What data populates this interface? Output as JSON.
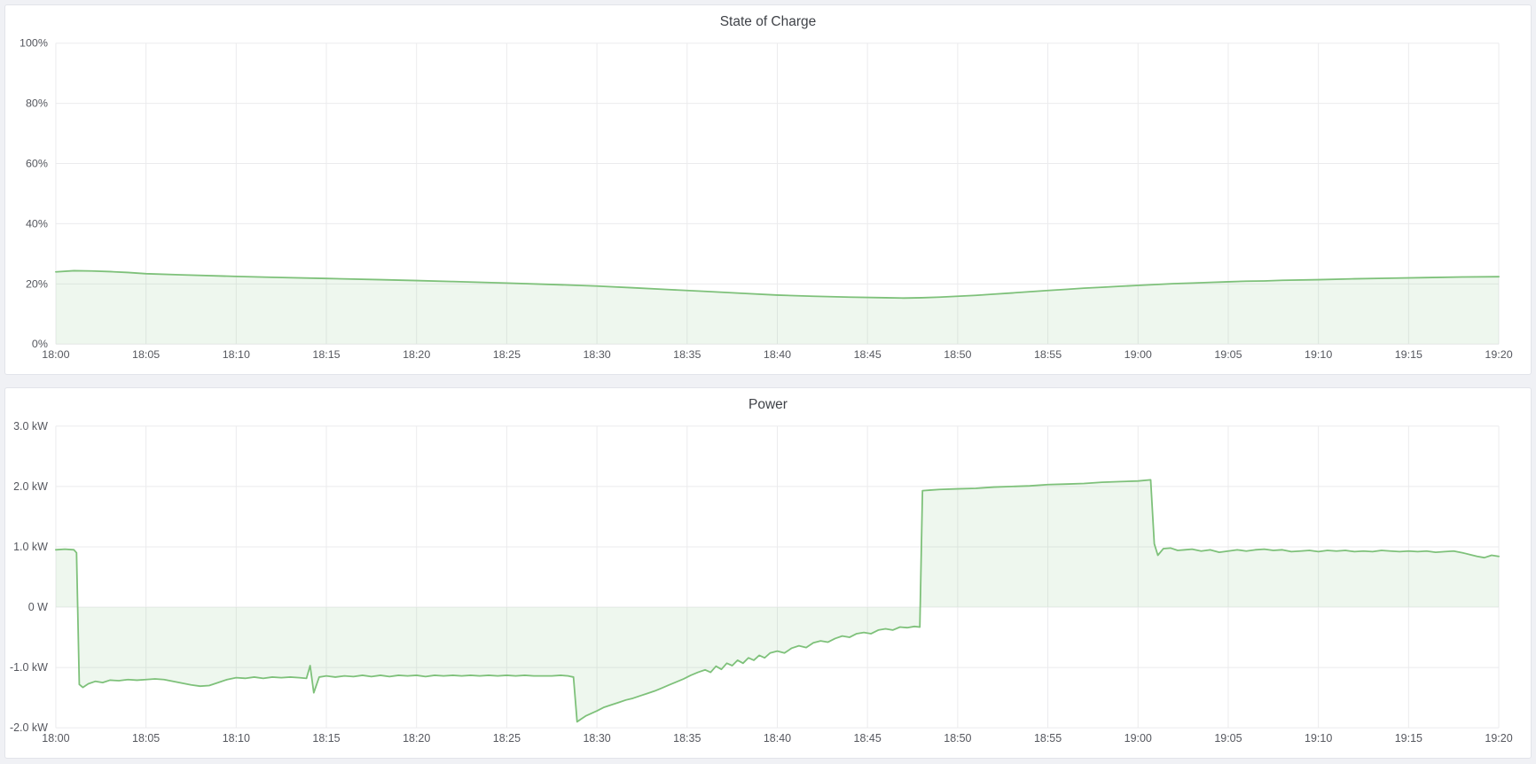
{
  "theme": {
    "page_bg": "#f0f1f5",
    "panel_bg": "#ffffff",
    "panel_border": "#e2e4ea",
    "title_color": "#3f4248",
    "axis_text_color": "#55575e",
    "grid_color": "#ebebed",
    "line_color": "#7ec17a",
    "fill_color": "rgba(126,195,121,0.13)"
  },
  "panels": [
    {
      "title": "State of Charge"
    },
    {
      "title": "Power"
    }
  ],
  "chart_data": [
    {
      "id": "state-of-charge",
      "type": "area",
      "title": "State of Charge",
      "xlabel": "",
      "ylabel": "",
      "xlim": [
        0,
        80
      ],
      "ylim": [
        0,
        100
      ],
      "baseline": 0,
      "grid": true,
      "legend": "none",
      "x_ticks": [
        {
          "v": 0,
          "label": "18:00"
        },
        {
          "v": 5,
          "label": "18:05"
        },
        {
          "v": 10,
          "label": "18:10"
        },
        {
          "v": 15,
          "label": "18:15"
        },
        {
          "v": 20,
          "label": "18:20"
        },
        {
          "v": 25,
          "label": "18:25"
        },
        {
          "v": 30,
          "label": "18:30"
        },
        {
          "v": 35,
          "label": "18:35"
        },
        {
          "v": 40,
          "label": "18:40"
        },
        {
          "v": 45,
          "label": "18:45"
        },
        {
          "v": 50,
          "label": "18:50"
        },
        {
          "v": 55,
          "label": "18:55"
        },
        {
          "v": 60,
          "label": "19:00"
        },
        {
          "v": 65,
          "label": "19:05"
        },
        {
          "v": 70,
          "label": "19:10"
        },
        {
          "v": 75,
          "label": "19:15"
        },
        {
          "v": 80,
          "label": "19:20"
        }
      ],
      "y_ticks": [
        {
          "v": 0,
          "label": "0%"
        },
        {
          "v": 20,
          "label": "20%"
        },
        {
          "v": 40,
          "label": "40%"
        },
        {
          "v": 60,
          "label": "60%"
        },
        {
          "v": 80,
          "label": "80%"
        },
        {
          "v": 100,
          "label": "100%"
        }
      ],
      "points": [
        [
          0,
          24.0
        ],
        [
          1,
          24.4
        ],
        [
          2,
          24.3
        ],
        [
          3,
          24.1
        ],
        [
          4,
          23.8
        ],
        [
          5,
          23.4
        ],
        [
          7,
          23.0
        ],
        [
          10,
          22.5
        ],
        [
          12,
          22.2
        ],
        [
          15,
          21.8
        ],
        [
          18,
          21.4
        ],
        [
          20,
          21.1
        ],
        [
          22,
          20.8
        ],
        [
          25,
          20.3
        ],
        [
          28,
          19.7
        ],
        [
          30,
          19.3
        ],
        [
          32,
          18.7
        ],
        [
          34,
          18.1
        ],
        [
          36,
          17.5
        ],
        [
          38,
          16.9
        ],
        [
          40,
          16.3
        ],
        [
          42,
          15.9
        ],
        [
          44,
          15.6
        ],
        [
          46,
          15.4
        ],
        [
          47,
          15.3
        ],
        [
          48,
          15.4
        ],
        [
          49,
          15.6
        ],
        [
          50,
          15.9
        ],
        [
          51,
          16.2
        ],
        [
          52,
          16.6
        ],
        [
          53,
          17.0
        ],
        [
          54,
          17.4
        ],
        [
          55,
          17.8
        ],
        [
          56,
          18.2
        ],
        [
          57,
          18.6
        ],
        [
          58,
          18.9
        ],
        [
          59,
          19.2
        ],
        [
          60,
          19.5
        ],
        [
          61,
          19.8
        ],
        [
          62,
          20.1
        ],
        [
          63,
          20.3
        ],
        [
          64,
          20.5
        ],
        [
          65,
          20.7
        ],
        [
          66,
          20.9
        ],
        [
          67,
          21.0
        ],
        [
          68,
          21.2
        ],
        [
          70,
          21.4
        ],
        [
          72,
          21.7
        ],
        [
          74,
          21.9
        ],
        [
          76,
          22.1
        ],
        [
          78,
          22.3
        ],
        [
          80,
          22.4
        ]
      ]
    },
    {
      "id": "power",
      "type": "area",
      "title": "Power",
      "xlabel": "",
      "ylabel": "",
      "xlim": [
        0,
        80
      ],
      "ylim": [
        -2,
        3
      ],
      "baseline": 0,
      "grid": true,
      "legend": "none",
      "x_ticks": [
        {
          "v": 0,
          "label": "18:00"
        },
        {
          "v": 5,
          "label": "18:05"
        },
        {
          "v": 10,
          "label": "18:10"
        },
        {
          "v": 15,
          "label": "18:15"
        },
        {
          "v": 20,
          "label": "18:20"
        },
        {
          "v": 25,
          "label": "18:25"
        },
        {
          "v": 30,
          "label": "18:30"
        },
        {
          "v": 35,
          "label": "18:35"
        },
        {
          "v": 40,
          "label": "18:40"
        },
        {
          "v": 45,
          "label": "18:45"
        },
        {
          "v": 50,
          "label": "18:50"
        },
        {
          "v": 55,
          "label": "18:55"
        },
        {
          "v": 60,
          "label": "19:00"
        },
        {
          "v": 65,
          "label": "19:05"
        },
        {
          "v": 70,
          "label": "19:10"
        },
        {
          "v": 75,
          "label": "19:15"
        },
        {
          "v": 80,
          "label": "19:20"
        }
      ],
      "y_ticks": [
        {
          "v": -2,
          "label": "-2.0 kW"
        },
        {
          "v": -1,
          "label": "-1.0 kW"
        },
        {
          "v": 0,
          "label": "0 W"
        },
        {
          "v": 1,
          "label": "1.0 kW"
        },
        {
          "v": 2,
          "label": "2.0 kW"
        },
        {
          "v": 3,
          "label": "3.0 kW"
        }
      ],
      "points": [
        [
          0,
          0.95
        ],
        [
          0.5,
          0.96
        ],
        [
          1.0,
          0.95
        ],
        [
          1.15,
          0.9
        ],
        [
          1.3,
          -1.28
        ],
        [
          1.5,
          -1.33
        ],
        [
          1.8,
          -1.27
        ],
        [
          2.2,
          -1.23
        ],
        [
          2.6,
          -1.25
        ],
        [
          3,
          -1.21
        ],
        [
          3.5,
          -1.22
        ],
        [
          4,
          -1.2
        ],
        [
          4.5,
          -1.21
        ],
        [
          5,
          -1.2
        ],
        [
          5.5,
          -1.19
        ],
        [
          6,
          -1.2
        ],
        [
          6.5,
          -1.23
        ],
        [
          7,
          -1.26
        ],
        [
          7.5,
          -1.29
        ],
        [
          8,
          -1.31
        ],
        [
          8.5,
          -1.3
        ],
        [
          9,
          -1.25
        ],
        [
          9.5,
          -1.2
        ],
        [
          10,
          -1.17
        ],
        [
          10.5,
          -1.18
        ],
        [
          11,
          -1.16
        ],
        [
          11.5,
          -1.18
        ],
        [
          12,
          -1.16
        ],
        [
          12.5,
          -1.17
        ],
        [
          13,
          -1.16
        ],
        [
          13.5,
          -1.17
        ],
        [
          13.9,
          -1.18
        ],
        [
          14.1,
          -0.97
        ],
        [
          14.3,
          -1.42
        ],
        [
          14.6,
          -1.16
        ],
        [
          15,
          -1.14
        ],
        [
          15.5,
          -1.16
        ],
        [
          16,
          -1.14
        ],
        [
          16.5,
          -1.15
        ],
        [
          17,
          -1.13
        ],
        [
          17.5,
          -1.15
        ],
        [
          18,
          -1.13
        ],
        [
          18.5,
          -1.15
        ],
        [
          19,
          -1.13
        ],
        [
          19.5,
          -1.14
        ],
        [
          20,
          -1.13
        ],
        [
          20.5,
          -1.15
        ],
        [
          21,
          -1.13
        ],
        [
          21.5,
          -1.14
        ],
        [
          22,
          -1.13
        ],
        [
          22.5,
          -1.14
        ],
        [
          23,
          -1.13
        ],
        [
          23.5,
          -1.14
        ],
        [
          24,
          -1.13
        ],
        [
          24.5,
          -1.14
        ],
        [
          25,
          -1.13
        ],
        [
          25.5,
          -1.14
        ],
        [
          26,
          -1.13
        ],
        [
          26.5,
          -1.14
        ],
        [
          27,
          -1.14
        ],
        [
          27.5,
          -1.14
        ],
        [
          28,
          -1.13
        ],
        [
          28.4,
          -1.14
        ],
        [
          28.7,
          -1.16
        ],
        [
          28.9,
          -1.9
        ],
        [
          29.1,
          -1.86
        ],
        [
          29.4,
          -1.8
        ],
        [
          29.7,
          -1.76
        ],
        [
          30,
          -1.72
        ],
        [
          30.4,
          -1.66
        ],
        [
          30.8,
          -1.62
        ],
        [
          31.2,
          -1.58
        ],
        [
          31.6,
          -1.54
        ],
        [
          32,
          -1.51
        ],
        [
          32.4,
          -1.47
        ],
        [
          32.8,
          -1.43
        ],
        [
          33.2,
          -1.39
        ],
        [
          33.6,
          -1.34
        ],
        [
          34,
          -1.29
        ],
        [
          34.4,
          -1.24
        ],
        [
          34.8,
          -1.19
        ],
        [
          35.2,
          -1.13
        ],
        [
          35.6,
          -1.08
        ],
        [
          36,
          -1.04
        ],
        [
          36.3,
          -1.08
        ],
        [
          36.6,
          -0.98
        ],
        [
          36.9,
          -1.03
        ],
        [
          37.2,
          -0.93
        ],
        [
          37.5,
          -0.97
        ],
        [
          37.8,
          -0.88
        ],
        [
          38.1,
          -0.93
        ],
        [
          38.4,
          -0.84
        ],
        [
          38.7,
          -0.88
        ],
        [
          39,
          -0.8
        ],
        [
          39.3,
          -0.84
        ],
        [
          39.6,
          -0.76
        ],
        [
          40,
          -0.73
        ],
        [
          40.4,
          -0.76
        ],
        [
          40.8,
          -0.68
        ],
        [
          41.2,
          -0.64
        ],
        [
          41.6,
          -0.67
        ],
        [
          42,
          -0.59
        ],
        [
          42.4,
          -0.56
        ],
        [
          42.8,
          -0.58
        ],
        [
          43.2,
          -0.52
        ],
        [
          43.6,
          -0.48
        ],
        [
          44,
          -0.5
        ],
        [
          44.4,
          -0.44
        ],
        [
          44.8,
          -0.42
        ],
        [
          45.2,
          -0.44
        ],
        [
          45.6,
          -0.38
        ],
        [
          46,
          -0.36
        ],
        [
          46.4,
          -0.38
        ],
        [
          46.8,
          -0.33
        ],
        [
          47.2,
          -0.34
        ],
        [
          47.6,
          -0.32
        ],
        [
          47.9,
          -0.33
        ],
        [
          48.05,
          1.93
        ],
        [
          48.5,
          1.94
        ],
        [
          49,
          1.95
        ],
        [
          50,
          1.96
        ],
        [
          51,
          1.97
        ],
        [
          52,
          1.99
        ],
        [
          53,
          2.0
        ],
        [
          54,
          2.01
        ],
        [
          55,
          2.03
        ],
        [
          56,
          2.04
        ],
        [
          57,
          2.05
        ],
        [
          58,
          2.07
        ],
        [
          59,
          2.08
        ],
        [
          60,
          2.09
        ],
        [
          60.7,
          2.11
        ],
        [
          60.9,
          1.05
        ],
        [
          61.1,
          0.86
        ],
        [
          61.4,
          0.97
        ],
        [
          61.8,
          0.98
        ],
        [
          62.2,
          0.94
        ],
        [
          62.6,
          0.95
        ],
        [
          63,
          0.96
        ],
        [
          63.5,
          0.93
        ],
        [
          64,
          0.95
        ],
        [
          64.5,
          0.91
        ],
        [
          65,
          0.93
        ],
        [
          65.5,
          0.95
        ],
        [
          66,
          0.93
        ],
        [
          66.5,
          0.95
        ],
        [
          67,
          0.96
        ],
        [
          67.5,
          0.94
        ],
        [
          68,
          0.95
        ],
        [
          68.5,
          0.92
        ],
        [
          69,
          0.93
        ],
        [
          69.5,
          0.94
        ],
        [
          70,
          0.92
        ],
        [
          70.5,
          0.94
        ],
        [
          71,
          0.93
        ],
        [
          71.5,
          0.94
        ],
        [
          72,
          0.92
        ],
        [
          72.5,
          0.93
        ],
        [
          73,
          0.92
        ],
        [
          73.5,
          0.94
        ],
        [
          74,
          0.93
        ],
        [
          74.5,
          0.92
        ],
        [
          75,
          0.93
        ],
        [
          75.5,
          0.92
        ],
        [
          76,
          0.93
        ],
        [
          76.5,
          0.91
        ],
        [
          77,
          0.92
        ],
        [
          77.5,
          0.93
        ],
        [
          78,
          0.9
        ],
        [
          78.4,
          0.87
        ],
        [
          78.8,
          0.84
        ],
        [
          79.2,
          0.82
        ],
        [
          79.6,
          0.86
        ],
        [
          80,
          0.84
        ]
      ]
    }
  ]
}
